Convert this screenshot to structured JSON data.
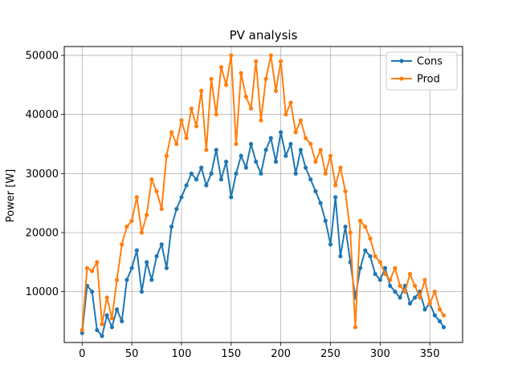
{
  "chart_data": {
    "type": "line",
    "title": "PV analysis",
    "xlabel": "",
    "ylabel": "Power [W]",
    "xlim": [
      -18,
      383
    ],
    "ylim": [
      1400,
      51500
    ],
    "x_ticks": [
      0,
      50,
      100,
      150,
      200,
      250,
      300,
      350
    ],
    "y_ticks": [
      10000,
      20000,
      30000,
      40000,
      50000
    ],
    "grid": true,
    "legend_position": "top-right",
    "marker": "circle",
    "series": [
      {
        "name": " Cons",
        "color": "#1f77b4",
        "x": [
          0,
          5,
          10,
          15,
          20,
          25,
          30,
          35,
          40,
          45,
          50,
          55,
          60,
          65,
          70,
          75,
          80,
          85,
          90,
          95,
          100,
          105,
          110,
          115,
          120,
          125,
          130,
          135,
          140,
          145,
          150,
          155,
          160,
          165,
          170,
          175,
          180,
          185,
          190,
          195,
          200,
          205,
          210,
          215,
          220,
          225,
          230,
          235,
          240,
          245,
          250,
          255,
          260,
          265,
          270,
          275,
          280,
          285,
          290,
          295,
          300,
          305,
          310,
          315,
          320,
          325,
          330,
          335,
          340,
          345,
          350,
          355,
          360,
          364
        ],
        "values": [
          3000,
          11000,
          10000,
          3500,
          2500,
          6000,
          4000,
          7000,
          5000,
          12000,
          14000,
          17000,
          10000,
          15000,
          12000,
          16000,
          18000,
          14000,
          21000,
          24000,
          26000,
          28000,
          30000,
          29000,
          31000,
          28000,
          30000,
          34000,
          29000,
          32000,
          26000,
          30000,
          33000,
          31000,
          35000,
          32000,
          30000,
          34000,
          36000,
          32000,
          37000,
          33000,
          35000,
          30000,
          34000,
          31000,
          29000,
          27000,
          25000,
          22000,
          18000,
          26000,
          16000,
          21000,
          15000,
          9000,
          14000,
          17000,
          16000,
          13000,
          12000,
          14000,
          11000,
          10000,
          9000,
          11000,
          8000,
          9000,
          10000,
          7000,
          8000,
          6000,
          5000,
          4000
        ]
      },
      {
        "name": " Prod",
        "color": "#ff7f0e",
        "x": [
          0,
          5,
          10,
          15,
          20,
          25,
          30,
          35,
          40,
          45,
          50,
          55,
          60,
          65,
          70,
          75,
          80,
          85,
          90,
          95,
          100,
          105,
          110,
          115,
          120,
          125,
          130,
          135,
          140,
          145,
          150,
          155,
          160,
          165,
          170,
          175,
          180,
          185,
          190,
          195,
          200,
          205,
          210,
          215,
          220,
          225,
          230,
          235,
          240,
          245,
          250,
          255,
          260,
          265,
          270,
          275,
          280,
          285,
          290,
          295,
          300,
          305,
          310,
          315,
          320,
          325,
          330,
          335,
          340,
          345,
          350,
          355,
          360,
          364
        ],
        "values": [
          3500,
          14000,
          13500,
          15000,
          4500,
          9000,
          5500,
          12000,
          18000,
          21000,
          22000,
          26000,
          20000,
          23000,
          29000,
          27000,
          24000,
          33000,
          37000,
          35000,
          39000,
          36000,
          41000,
          38000,
          44000,
          34000,
          46000,
          40000,
          48000,
          45000,
          50000,
          35000,
          47000,
          43000,
          41000,
          49000,
          39000,
          46000,
          50000,
          44000,
          49000,
          40000,
          42000,
          37000,
          39000,
          36000,
          35000,
          32000,
          34000,
          30000,
          33000,
          28000,
          31000,
          27000,
          20000,
          4000,
          22000,
          21000,
          19000,
          16000,
          15000,
          13000,
          12000,
          14000,
          11000,
          10000,
          13000,
          11000,
          9000,
          12000,
          8000,
          10000,
          7000,
          6000
        ]
      }
    ]
  }
}
